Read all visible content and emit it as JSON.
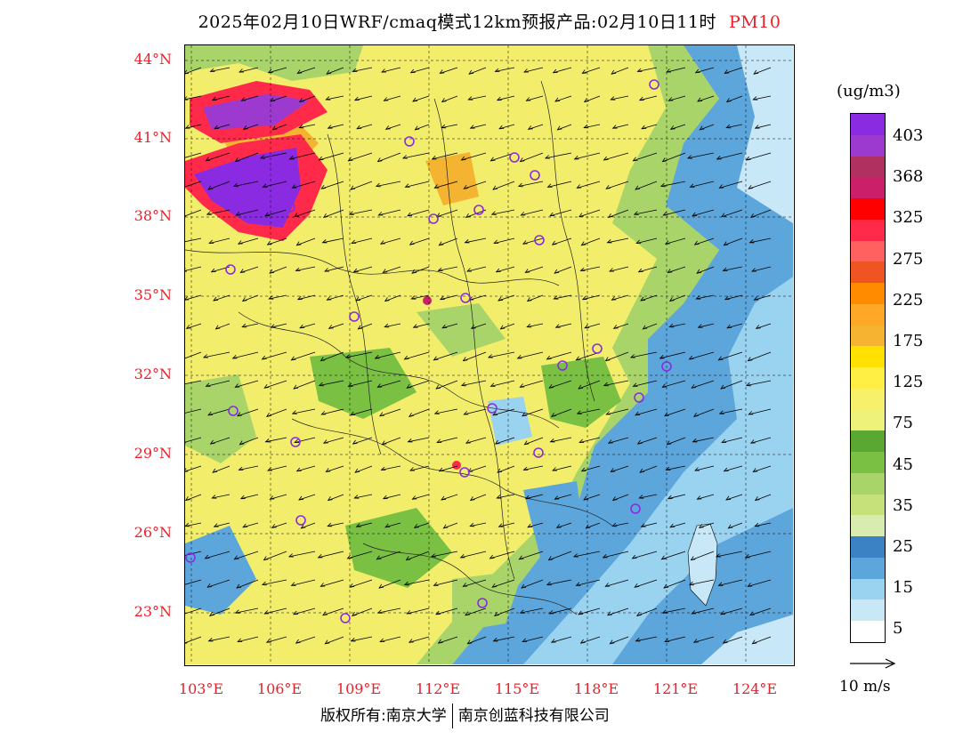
{
  "title": {
    "main": "2025年02月10日WRF/cmaq模式12km预报产品:02月10日11时",
    "pollutant": "PM10"
  },
  "axes": {
    "lat_labels": [
      "44°N",
      "41°N",
      "38°N",
      "35°N",
      "32°N",
      "29°N",
      "26°N",
      "23°N"
    ],
    "lon_labels": [
      "103°E",
      "106°E",
      "109°E",
      "112°E",
      "115°E",
      "118°E",
      "121°E",
      "124°E"
    ]
  },
  "colorbar": {
    "unit": "(ug/m3)",
    "labels": [
      "403",
      "368",
      "325",
      "275",
      "225",
      "175",
      "125",
      "75",
      "45",
      "35",
      "25",
      "15",
      "5"
    ],
    "colors": [
      "#8a2be2",
      "#9c3ad0",
      "#b03060",
      "#cc1f6a",
      "#ff0000",
      "#ff2a4a",
      "#ff6060",
      "#ee5522",
      "#ff8c00",
      "#ffa726",
      "#f4b431",
      "#ffe100",
      "#ffee44",
      "#f7f06a",
      "#eef27a",
      "#5aa832",
      "#79c043",
      "#a9d46a",
      "#c6e07a",
      "#d9ecb0",
      "#3b82c4",
      "#5da6db",
      "#9ad3f0",
      "#c8e8f8",
      "#ffffff"
    ]
  },
  "wind_reference": {
    "label": "10 m/s"
  },
  "city_markers_color": "#8a2be2",
  "footer": {
    "left": "版权所有:南京大学",
    "right": "南京创蓝科技有限公司"
  }
}
